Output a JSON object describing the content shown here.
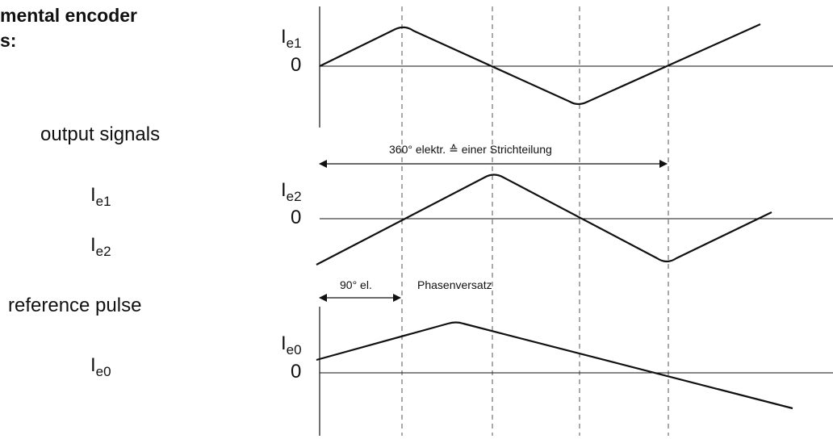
{
  "heading": {
    "line1": "mental encoder",
    "line2": "s:"
  },
  "side_labels": {
    "output_signals": "output signals",
    "ie1": {
      "base": "I",
      "sub": "e1"
    },
    "ie2": {
      "base": "I",
      "sub": "e2"
    },
    "reference_pulse": "reference pulse",
    "ie0": {
      "base": "I",
      "sub": "e0"
    }
  },
  "plots": [
    {
      "id": "ie1",
      "label": {
        "base": "I",
        "sub": "e1"
      },
      "zero": "0"
    },
    {
      "id": "ie2",
      "label": {
        "base": "I",
        "sub": "e2"
      },
      "zero": "0"
    },
    {
      "id": "ie0",
      "label": {
        "base": "I",
        "sub": "e0"
      },
      "zero": "0"
    }
  ],
  "annotations": {
    "period": "360° elektr. ≙ einer Strichteilung",
    "phase_angle": "90° el.",
    "phase_text": "Phasenversatz"
  },
  "colors": {
    "line": "#111111",
    "grid": "#555555"
  }
}
